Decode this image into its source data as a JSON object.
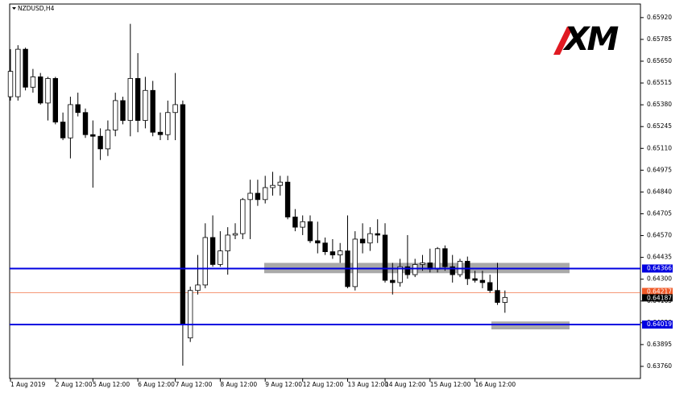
{
  "chart_data": {
    "type": "candlestick",
    "title": "NZDUSD,H4",
    "logo": "XM",
    "categories": [
      "1 Aug 2019",
      null,
      null,
      null,
      null,
      null,
      "2 Aug 12:00",
      null,
      null,
      null,
      null,
      "5 Aug 12:00",
      null,
      null,
      null,
      null,
      null,
      "6 Aug 12:00",
      null,
      null,
      null,
      null,
      "7 Aug 12:00",
      null,
      null,
      null,
      null,
      null,
      "8 Aug 12:00",
      null,
      null,
      null,
      null,
      null,
      "9 Aug 12:00",
      null,
      null,
      null,
      null,
      "12 Aug 12:00",
      null,
      null,
      null,
      null,
      null,
      "13 Aug 12:00",
      null,
      null,
      null,
      null,
      "14 Aug 12:00",
      null,
      null,
      null,
      null,
      null,
      "15 Aug 12:00",
      null,
      null,
      null,
      null,
      null,
      "16 Aug 12:00",
      null,
      null,
      null,
      null
    ],
    "open": [
      0.6543,
      0.6543,
      0.65724,
      0.65489,
      0.65553,
      0.65391,
      0.65543,
      0.65273,
      0.65175,
      0.65381,
      0.65332,
      0.65195,
      0.65185,
      0.65107,
      0.65224,
      0.65406,
      0.65283,
      0.65543,
      0.65283,
      0.65469,
      0.6521,
      0.65195,
      0.65332,
      0.65381,
      0.63936,
      0.6423,
      0.64264,
      0.64558,
      0.64391,
      0.64475,
      0.64573,
      0.64582,
      0.64793,
      0.64832,
      0.64793,
      0.64867,
      0.64881,
      0.64901,
      0.64685,
      0.64622,
      0.64656,
      0.64538,
      0.64524,
      0.6447,
      0.6445,
      0.64475,
      0.64254,
      0.64548,
      0.64524,
      0.64582,
      0.64573,
      0.64293,
      0.64279,
      0.64377,
      0.64328,
      0.64391,
      0.64401,
      0.64362,
      0.64489,
      0.64377,
      0.64328,
      0.64411,
      0.64303,
      0.64293,
      0.64279,
      0.6423,
      0.64156
    ],
    "high": [
      0.65724,
      0.65749,
      0.65734,
      0.65602,
      0.65577,
      0.65553,
      0.65553,
      0.65332,
      0.6543,
      0.65455,
      0.65357,
      0.65283,
      0.65234,
      0.65283,
      0.65455,
      0.6543,
      0.65881,
      0.657,
      0.65553,
      0.65528,
      0.65332,
      0.65406,
      0.65577,
      0.65406,
      0.64254,
      0.6445,
      0.64646,
      0.64695,
      0.64597,
      0.64622,
      0.64646,
      0.64803,
      0.64916,
      0.64916,
      0.6494,
      0.64965,
      0.6494,
      0.6494,
      0.64734,
      0.64695,
      0.64695,
      0.64656,
      0.64558,
      0.64548,
      0.64524,
      0.64695,
      0.64597,
      0.64646,
      0.64622,
      0.64671,
      0.64646,
      0.64401,
      0.64426,
      0.64573,
      0.64426,
      0.6445,
      0.64489,
      0.64499,
      0.64509,
      0.6445,
      0.64426,
      0.6444,
      0.64352,
      0.64352,
      0.64328,
      0.64401,
      0.6423
    ],
    "low": [
      0.65406,
      0.65406,
      0.65469,
      0.65455,
      0.65381,
      0.65283,
      0.65259,
      0.65161,
      0.65048,
      0.65308,
      0.65175,
      0.64867,
      0.65038,
      0.65063,
      0.65185,
      0.65259,
      0.65185,
      0.6521,
      0.65234,
      0.65185,
      0.65161,
      0.65161,
      0.65161,
      0.63764,
      0.63911,
      0.64205,
      0.64244,
      0.64377,
      0.64377,
      0.64328,
      0.64548,
      0.64548,
      0.64548,
      0.64754,
      0.64769,
      0.64818,
      0.64818,
      0.64671,
      0.64597,
      0.64573,
      0.64524,
      0.6446,
      0.6445,
      0.64426,
      0.64401,
      0.64244,
      0.6423,
      0.6446,
      0.64475,
      0.64524,
      0.64279,
      0.64205,
      0.64254,
      0.64303,
      0.64313,
      0.64352,
      0.64342,
      0.64342,
      0.64352,
      0.64279,
      0.64313,
      0.64264,
      0.64279,
      0.64244,
      0.64215,
      0.64141,
      0.64092
    ],
    "close": [
      0.65587,
      0.65724,
      0.65489,
      0.65553,
      0.65391,
      0.65543,
      0.65273,
      0.65175,
      0.65381,
      0.65332,
      0.65195,
      0.65185,
      0.65107,
      0.65224,
      0.65406,
      0.65283,
      0.65543,
      0.65283,
      0.65469,
      0.6521,
      0.65195,
      0.65332,
      0.65381,
      0.64019,
      0.6423,
      0.64264,
      0.64558,
      0.64391,
      0.64475,
      0.64573,
      0.64582,
      0.64793,
      0.64832,
      0.64793,
      0.64867,
      0.64881,
      0.64901,
      0.64685,
      0.64622,
      0.64656,
      0.64538,
      0.64524,
      0.6447,
      0.6445,
      0.64475,
      0.64254,
      0.64548,
      0.64524,
      0.64582,
      0.64573,
      0.64293,
      0.64279,
      0.64377,
      0.64328,
      0.64391,
      0.64401,
      0.64362,
      0.64489,
      0.64377,
      0.64328,
      0.64411,
      0.64303,
      0.64293,
      0.64279,
      0.6423,
      0.64156,
      0.64187
    ],
    "ylim": [
      0.63685,
      0.66004
    ],
    "yticks": [
      {
        "value": 0.6592,
        "label": "0.65920"
      },
      0.65785,
      {
        "value": 0.6565,
        "label": "0.65650"
      },
      0.65515,
      {
        "value": 0.6538,
        "label": "0.65380"
      },
      0.65245,
      {
        "value": 0.6511,
        "label": "0.65110"
      },
      0.64975,
      {
        "value": 0.6484,
        "label": "0.64840"
      },
      0.64705,
      {
        "value": 0.6457,
        "label": "0.64570"
      },
      0.64435,
      {
        "value": 0.643,
        "label": "0.64300"
      },
      0.64165,
      {
        "value": 0.6403,
        "label": "0.64030"
      },
      0.63895,
      {
        "value": 0.6376,
        "label": "0.63760"
      }
    ],
    "levels": [
      {
        "value": 0.64366,
        "color": "#0000e0"
      },
      {
        "value": 0.64019,
        "color": "#0000e0"
      }
    ],
    "zones": [
      {
        "top": 0.64401,
        "bottom": 0.64337
      },
      {
        "top": 0.64038,
        "bottom": 0.63989
      }
    ],
    "ask": {
      "value": 0.64217,
      "color": "#f05a28"
    },
    "bid": {
      "value": 0.64187,
      "color": "#000000"
    },
    "bull_color": "#ffffff",
    "bear_color": "#000000"
  }
}
